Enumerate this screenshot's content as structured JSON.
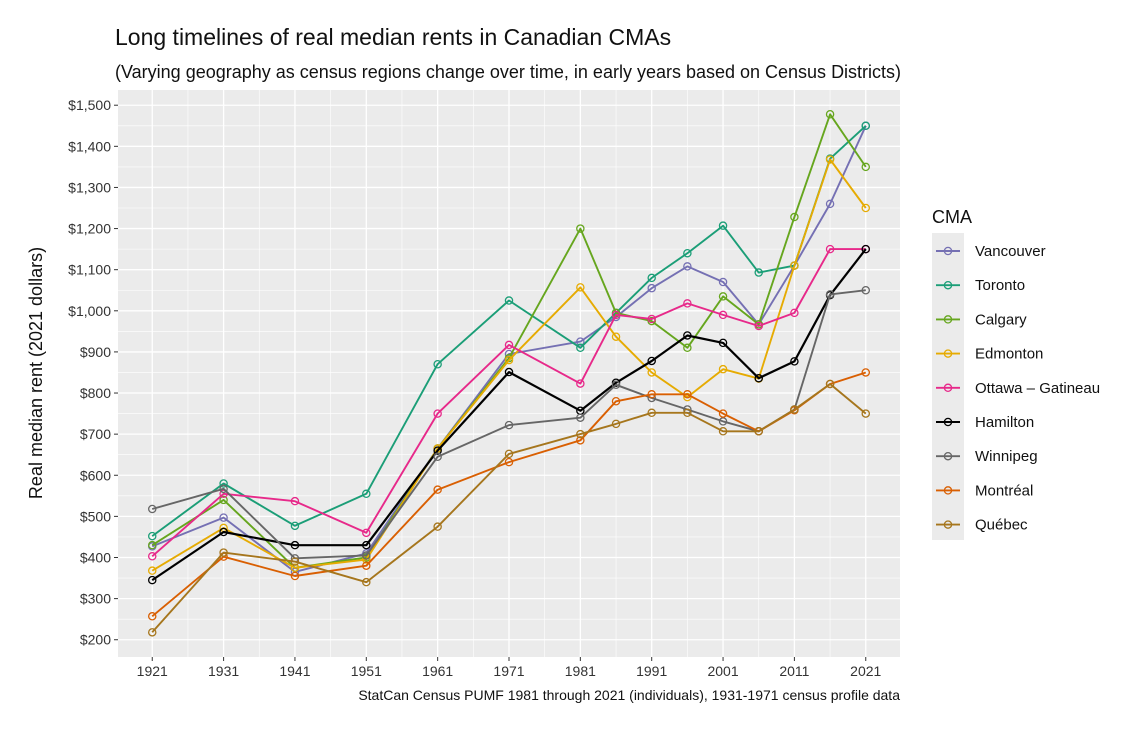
{
  "chart_data": {
    "type": "line",
    "title": "Long timelines of real median rents in Canadian CMAs",
    "subtitle": "(Varying geography as census regions change over time, in early years based on Census Districts)",
    "xlabel": "",
    "ylabel": "Real median rent (2021 dollars)",
    "caption": "StatCan Census PUMF 1981 through 2021 (individuals), 1931-1971 census profile data",
    "x_ticks": [
      1921,
      1931,
      1941,
      1951,
      1961,
      1971,
      1981,
      1991,
      2001,
      2011,
      2021
    ],
    "x_tick_labels": [
      "1921",
      "1931",
      "1941",
      "1951",
      "1961",
      "1971",
      "1981",
      "1991",
      "2001",
      "2011",
      "2021"
    ],
    "y_ticks": [
      200,
      300,
      400,
      500,
      600,
      700,
      800,
      900,
      1000,
      1100,
      1200,
      1300,
      1400,
      1500
    ],
    "y_tick_labels": [
      "$200",
      "$300",
      "$400",
      "$500",
      "$600",
      "$700",
      "$800",
      "$900",
      "$1,000",
      "$1,100",
      "$1,200",
      "$1,300",
      "$1,400",
      "$1,500"
    ],
    "xlim": [
      1916.2,
      2025.8
    ],
    "ylim": [
      158,
      1537
    ],
    "grid": true,
    "legend_title": "CMA",
    "legend_position": "right",
    "x": [
      1921,
      1931,
      1941,
      1951,
      1961,
      1971,
      1981,
      1986,
      1991,
      1996,
      2001,
      2006,
      2011,
      2016,
      2021
    ],
    "series": [
      {
        "name": "Vancouver",
        "color": "#7570B3",
        "values": [
          427,
          497,
          365,
          410,
          665,
          895,
          925,
          985,
          1055,
          1108,
          1070,
          967,
          1110,
          1260,
          1450
        ]
      },
      {
        "name": "Toronto",
        "color": "#1B9E77",
        "values": [
          452,
          580,
          477,
          555,
          870,
          1025,
          910,
          995,
          1080,
          1140,
          1207,
          1093,
          1110,
          1370,
          1450
        ]
      },
      {
        "name": "Calgary",
        "color": "#66A61E",
        "values": [
          430,
          540,
          375,
          400,
          665,
          885,
          1200,
          995,
          975,
          910,
          1035,
          967,
          1228,
          1478,
          1350
        ]
      },
      {
        "name": "Edmonton",
        "color": "#E6AB02",
        "values": [
          368,
          472,
          375,
          395,
          665,
          880,
          1057,
          937,
          850,
          790,
          858,
          835,
          1110,
          1368,
          1250
        ]
      },
      {
        "name": "Ottawa – Gatineau",
        "color": "#E7298A",
        "values": [
          403,
          555,
          537,
          460,
          750,
          917,
          823,
          990,
          980,
          1018,
          990,
          963,
          995,
          1150,
          1150
        ]
      },
      {
        "name": "Hamilton",
        "color": "#000000",
        "values": [
          345,
          462,
          430,
          430,
          660,
          851,
          757,
          825,
          878,
          940,
          922,
          836,
          877,
          1038,
          1150
        ]
      },
      {
        "name": "Winnipeg",
        "color": "#666666",
        "values": [
          518,
          567,
          398,
          405,
          645,
          722,
          740,
          820,
          788,
          760,
          731,
          707,
          760,
          1040,
          1050
        ]
      },
      {
        "name": "Montréal",
        "color": "#D95F02",
        "values": [
          257,
          402,
          355,
          380,
          565,
          632,
          685,
          780,
          797,
          797,
          750,
          707,
          758,
          822,
          850
        ]
      },
      {
        "name": "Québec",
        "color": "#A6761D",
        "values": [
          218,
          412,
          390,
          340,
          475,
          652,
          700,
          725,
          752,
          752,
          707,
          707,
          760,
          822,
          750
        ]
      }
    ]
  }
}
